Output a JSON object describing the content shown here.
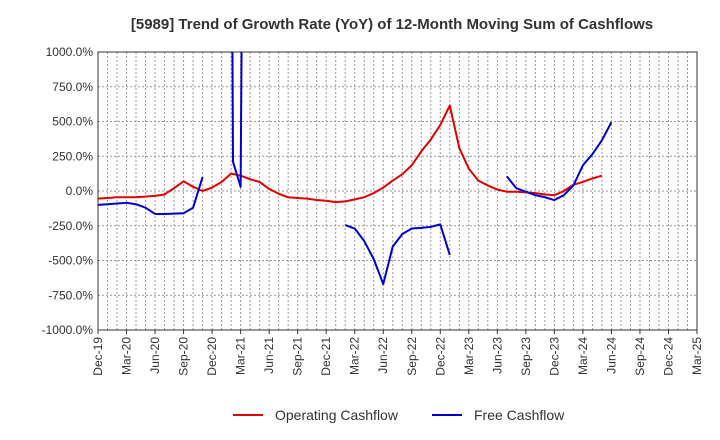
{
  "chart_data": {
    "type": "line",
    "title": "[5989]  Trend of Growth Rate (YoY) of 12-Month Moving Sum of Cashflows",
    "xlabel": "",
    "ylabel": "",
    "ylim": [
      -1000,
      1000
    ],
    "y_ticks": [
      "1000.0%",
      "750.0%",
      "500.0%",
      "250.0%",
      "0.0%",
      "-250.0%",
      "-500.0%",
      "-750.0%",
      "-1000.0%"
    ],
    "y_tick_values": [
      1000,
      750,
      500,
      250,
      0,
      -250,
      -500,
      -750,
      -1000
    ],
    "x_ticks": [
      "Dec-19",
      "Mar-20",
      "Jun-20",
      "Sep-20",
      "Dec-20",
      "Mar-21",
      "Jun-21",
      "Sep-21",
      "Dec-21",
      "Mar-22",
      "Jun-22",
      "Sep-22",
      "Dec-22",
      "Mar-23",
      "Jun-23",
      "Sep-23",
      "Dec-23",
      "Mar-24",
      "Jun-24",
      "Sep-24",
      "Dec-24",
      "Mar-25"
    ],
    "grid": true,
    "legend_position": "bottom",
    "series": [
      {
        "name": "Operating Cashflow",
        "color": "#e00000",
        "points": [
          [
            0,
            -55
          ],
          [
            1,
            -50
          ],
          [
            2,
            -45
          ],
          [
            3,
            -45
          ],
          [
            4,
            -45
          ],
          [
            5,
            -40
          ],
          [
            6,
            -35
          ],
          [
            7,
            -25
          ],
          [
            8,
            20
          ],
          [
            9,
            70
          ],
          [
            10,
            30
          ],
          [
            11,
            0
          ],
          [
            12,
            25
          ],
          [
            13,
            65
          ],
          [
            14,
            125
          ],
          [
            15,
            110
          ],
          [
            16,
            85
          ],
          [
            17,
            65
          ],
          [
            18,
            15
          ],
          [
            19,
            -20
          ],
          [
            20,
            -45
          ],
          [
            21,
            -50
          ],
          [
            22,
            -55
          ],
          [
            23,
            -65
          ],
          [
            24,
            -70
          ],
          [
            25,
            -80
          ],
          [
            26,
            -75
          ],
          [
            27,
            -60
          ],
          [
            28,
            -45
          ],
          [
            29,
            -15
          ],
          [
            30,
            25
          ],
          [
            31,
            75
          ],
          [
            32,
            120
          ],
          [
            33,
            185
          ],
          [
            34,
            285
          ],
          [
            35,
            370
          ],
          [
            36,
            475
          ],
          [
            37,
            615
          ],
          [
            38,
            310
          ],
          [
            39,
            160
          ],
          [
            40,
            75
          ],
          [
            41,
            40
          ],
          [
            42,
            10
          ],
          [
            43,
            -5
          ],
          [
            44,
            -5
          ],
          [
            45,
            -10
          ],
          [
            46,
            -15
          ],
          [
            47,
            -25
          ],
          [
            48,
            -30
          ],
          [
            49,
            0
          ],
          [
            50,
            45
          ],
          [
            51,
            65
          ],
          [
            52,
            90
          ],
          [
            53,
            110
          ]
        ]
      },
      {
        "name": "Free Cashflow",
        "color": "#0000cc",
        "segments": [
          [
            [
              0,
              -100
            ],
            [
              1,
              -95
            ],
            [
              2,
              -90
            ],
            [
              3,
              -85
            ],
            [
              4,
              -95
            ],
            [
              5,
              -120
            ],
            [
              6,
              -165
            ],
            [
              7,
              -165
            ],
            [
              8,
              -163
            ],
            [
              9,
              -160
            ],
            [
              10,
              -120
            ],
            [
              11,
              100
            ]
          ],
          [
            [
              14,
              3000
            ],
            [
              14.2,
              210
            ],
            [
              15,
              30
            ],
            [
              15.3,
              3000
            ]
          ],
          [
            [
              26,
              -245
            ],
            [
              27,
              -270
            ],
            [
              28,
              -360
            ],
            [
              29,
              -490
            ],
            [
              30,
              -670
            ],
            [
              31,
              -400
            ],
            [
              32,
              -310
            ],
            [
              33,
              -270
            ],
            [
              34,
              -265
            ],
            [
              35,
              -258
            ],
            [
              36,
              -240
            ],
            [
              37,
              -460
            ]
          ],
          [
            [
              43,
              105
            ],
            [
              44,
              20
            ],
            [
              45,
              -5
            ],
            [
              46,
              -30
            ],
            [
              47,
              -45
            ],
            [
              48,
              -65
            ],
            [
              49,
              -30
            ],
            [
              50,
              40
            ],
            [
              51,
              185
            ],
            [
              52,
              265
            ],
            [
              53,
              365
            ],
            [
              54,
              495
            ]
          ]
        ]
      }
    ]
  }
}
